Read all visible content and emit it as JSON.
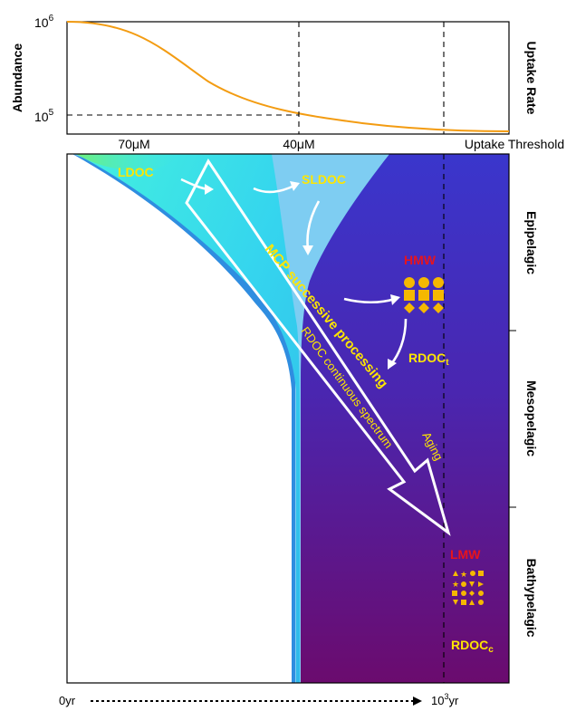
{
  "top_panel": {
    "y_label": "Abundance",
    "right_label": "Uptake Rate",
    "y_tick_high": {
      "base": "10",
      "exp": "6"
    },
    "y_tick_low": {
      "base": "10",
      "exp": "5"
    },
    "x_labels": [
      "70μM",
      "40μM",
      "Uptake Threshold"
    ]
  },
  "main_panel": {
    "labels": {
      "ldoc": "LDOC",
      "sldoc": "SLDOC",
      "hmw": "HMW",
      "rdoc_t": {
        "base": "RDOC",
        "sub": "t"
      },
      "lmw": "LMW",
      "rdoc_c": {
        "base": "RDOC",
        "sub": "c"
      },
      "mcp": "MCP successive processing",
      "spectrum": "RDOC continuous spectrum",
      "aging": "Aging"
    },
    "zones": [
      "Epipelagic",
      "Mesopelagic",
      "Bathypelagic"
    ]
  },
  "time_axis": {
    "start": "0yr",
    "end": {
      "base": "10",
      "exp": "3",
      "unit": "yr"
    }
  },
  "colors": {
    "curve": "#f39c12",
    "ldoc_fill": "#3fe6e8",
    "dark_top": "#3c33c8",
    "dark_bottom": "#6b0b6e",
    "label_yellow": "#ffe600",
    "label_red": "#e8141c",
    "symbols": "#f5b800"
  }
}
